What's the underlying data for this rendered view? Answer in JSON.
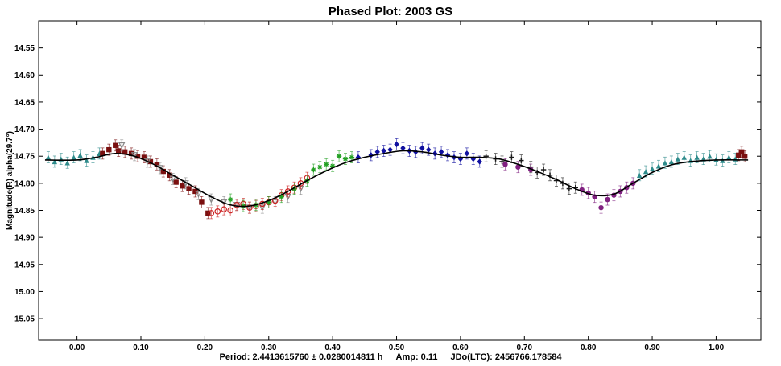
{
  "chart_data": {
    "type": "scatter",
    "title": "Phased Plot: 2003 GS",
    "ylabel": "Magnitude(R) alpha(29.7°)",
    "xlabel": "",
    "xlim": [
      -0.06,
      1.07
    ],
    "ylim": [
      14.5,
      15.09
    ],
    "y_inverted": true,
    "x_ticks": [
      "0.00",
      "0.10",
      "0.20",
      "0.30",
      "0.40",
      "0.50",
      "0.60",
      "0.70",
      "0.80",
      "0.90",
      "1.00"
    ],
    "y_ticks": [
      "14.55",
      "14.60",
      "14.65",
      "14.70",
      "14.75",
      "14.80",
      "14.85",
      "14.90",
      "14.95",
      "15.00",
      "15.05"
    ],
    "grid": false,
    "fit_curve": {
      "x": [
        -0.05,
        0.0,
        0.03,
        0.06,
        0.09,
        0.12,
        0.15,
        0.18,
        0.21,
        0.24,
        0.27,
        0.3,
        0.33,
        0.36,
        0.39,
        0.42,
        0.45,
        0.48,
        0.51,
        0.54,
        0.57,
        0.6,
        0.63,
        0.66,
        0.69,
        0.72,
        0.75,
        0.78,
        0.81,
        0.84,
        0.87,
        0.9,
        0.93,
        0.96,
        1.0,
        1.05
      ],
      "y": [
        14.757,
        14.757,
        14.752,
        14.745,
        14.75,
        14.765,
        14.785,
        14.805,
        14.825,
        14.84,
        14.842,
        14.832,
        14.815,
        14.795,
        14.777,
        14.762,
        14.752,
        14.745,
        14.74,
        14.742,
        14.748,
        14.752,
        14.752,
        14.755,
        14.765,
        14.778,
        14.793,
        14.81,
        14.822,
        14.82,
        14.8,
        14.78,
        14.766,
        14.76,
        14.757,
        14.757
      ]
    },
    "series": [
      {
        "name": "",
        "color": "#2e8b8b",
        "marker": "triangle",
        "x": [
          -0.045,
          -0.035,
          -0.025,
          -0.015,
          -0.005,
          0.005,
          0.015,
          0.025,
          0.035,
          0.88,
          0.89,
          0.9,
          0.91,
          0.92,
          0.93,
          0.94,
          0.95,
          0.96,
          0.97,
          0.98,
          0.99,
          1.0,
          1.01,
          1.02,
          1.03
        ],
        "y": [
          14.752,
          14.76,
          14.755,
          14.762,
          14.752,
          14.748,
          14.758,
          14.752,
          14.745,
          14.785,
          14.778,
          14.773,
          14.768,
          14.762,
          14.76,
          14.755,
          14.752,
          14.758,
          14.752,
          14.755,
          14.75,
          14.756,
          14.758,
          14.752,
          14.755
        ]
      },
      {
        "name": "",
        "color": "#7a0f0f",
        "marker": "square",
        "x": [
          0.04,
          0.05,
          0.06,
          0.065,
          0.075,
          0.085,
          0.095,
          0.105,
          0.115,
          0.125,
          0.135,
          0.145,
          0.155,
          0.165,
          0.175,
          0.185,
          0.195,
          0.205,
          1.035,
          1.04,
          1.045
        ],
        "y": [
          14.745,
          14.738,
          14.73,
          14.74,
          14.742,
          14.745,
          14.75,
          14.752,
          14.76,
          14.765,
          14.778,
          14.785,
          14.798,
          14.805,
          14.81,
          14.815,
          14.835,
          14.855,
          14.748,
          14.742,
          14.75
        ]
      },
      {
        "name": "",
        "color": "#888888",
        "marker": "triangle-down",
        "x": [
          0.07,
          0.09,
          0.11,
          0.13,
          0.15,
          0.17,
          0.19,
          0.21,
          0.23,
          0.25,
          0.27,
          0.29,
          0.31,
          0.33,
          0.35
        ],
        "y": [
          14.73,
          14.748,
          14.76,
          14.772,
          14.792,
          14.8,
          14.82,
          14.83,
          14.835,
          14.84,
          14.845,
          14.845,
          14.835,
          14.825,
          14.81
        ]
      },
      {
        "name": "",
        "color": "#cc2222",
        "marker": "circle-open",
        "x": [
          0.21,
          0.22,
          0.23,
          0.24,
          0.25,
          0.26,
          0.27,
          0.28,
          0.29,
          0.3,
          0.31,
          0.32,
          0.33,
          0.34,
          0.35,
          0.36
        ],
        "y": [
          14.855,
          14.852,
          14.848,
          14.85,
          14.84,
          14.838,
          14.845,
          14.842,
          14.838,
          14.835,
          14.832,
          14.822,
          14.815,
          14.808,
          14.8,
          14.79
        ]
      },
      {
        "name": "",
        "color": "#22a022",
        "marker": "star",
        "x": [
          0.24,
          0.26,
          0.28,
          0.3,
          0.32,
          0.34,
          0.36,
          0.37,
          0.38,
          0.39,
          0.4,
          0.41,
          0.42,
          0.43
        ],
        "y": [
          14.83,
          14.842,
          14.84,
          14.835,
          14.825,
          14.81,
          14.795,
          14.775,
          14.77,
          14.765,
          14.768,
          14.75,
          14.755,
          14.752
        ]
      },
      {
        "name": "",
        "color": "#1010a0",
        "marker": "diamond",
        "x": [
          0.44,
          0.46,
          0.47,
          0.48,
          0.49,
          0.5,
          0.51,
          0.52,
          0.53,
          0.54,
          0.55,
          0.56,
          0.57,
          0.58,
          0.59,
          0.6,
          0.61,
          0.62,
          0.63
        ],
        "y": [
          14.752,
          14.748,
          14.742,
          14.74,
          14.738,
          14.728,
          14.735,
          14.74,
          14.742,
          14.735,
          14.738,
          14.745,
          14.742,
          14.748,
          14.752,
          14.755,
          14.745,
          14.755,
          14.76
        ]
      },
      {
        "name": "",
        "color": "#1a1a1a",
        "marker": "plus",
        "x": [
          0.64,
          0.655,
          0.665,
          0.68,
          0.695,
          0.71,
          0.72,
          0.73,
          0.74,
          0.75,
          0.76,
          0.77,
          0.78
        ],
        "y": [
          14.75,
          14.755,
          14.76,
          14.752,
          14.758,
          14.77,
          14.78,
          14.775,
          14.785,
          14.795,
          14.8,
          14.81,
          14.808
        ]
      },
      {
        "name": "",
        "color": "#802080",
        "marker": "circle",
        "x": [
          0.67,
          0.69,
          0.71,
          0.79,
          0.8,
          0.81,
          0.82,
          0.83,
          0.84,
          0.85,
          0.86,
          0.87
        ],
        "y": [
          14.765,
          14.77,
          14.775,
          14.812,
          14.818,
          14.825,
          14.845,
          14.83,
          14.822,
          14.815,
          14.808,
          14.8
        ]
      }
    ]
  },
  "footer": {
    "period": "Period: 2.4413615760 ± 0.0280014811 h",
    "amp": "Amp: 0.11",
    "jdo": "JDo(LTC): 2456766.178584"
  }
}
